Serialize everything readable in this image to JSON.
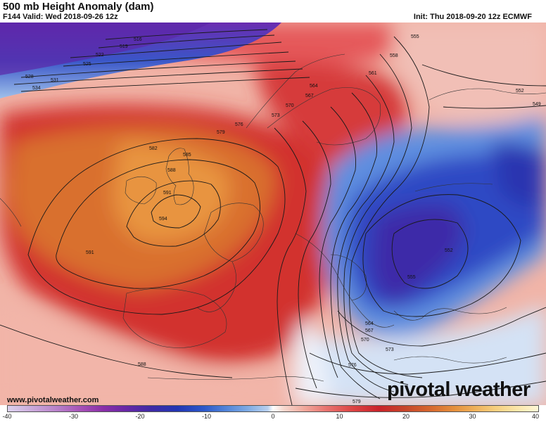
{
  "header": {
    "title": "500 mb Height Anomaly (dam)",
    "valid": "F144 Valid: Wed 2018-09-26 12z",
    "init": "Init: Thu 2018-09-20 12z ECMWF"
  },
  "contour_labels": [
    "516",
    "519",
    "522",
    "525",
    "528",
    "531",
    "534",
    "555",
    "558",
    "561",
    "564",
    "567",
    "570",
    "573",
    "576",
    "579",
    "582",
    "585",
    "588",
    "591",
    "594",
    "591",
    "552",
    "549",
    "552",
    "555",
    "564",
    "567",
    "570",
    "573",
    "576",
    "579",
    "588"
  ],
  "colorbar": {
    "ticks": [
      "-40",
      "-30",
      "-20",
      "-10",
      "0",
      "10",
      "20",
      "30",
      "40"
    ],
    "min": -40,
    "max": 40
  },
  "footer": {
    "website": "www.pivotalweather.com",
    "brand": "pivotal weather"
  },
  "colors": {
    "ridge_core": "#e08a3a",
    "ridge_edge": "#c9232a",
    "trough_core": "#3a2db0",
    "trough_edge": "#7aa8e3",
    "contour": "#1a1a1a"
  }
}
